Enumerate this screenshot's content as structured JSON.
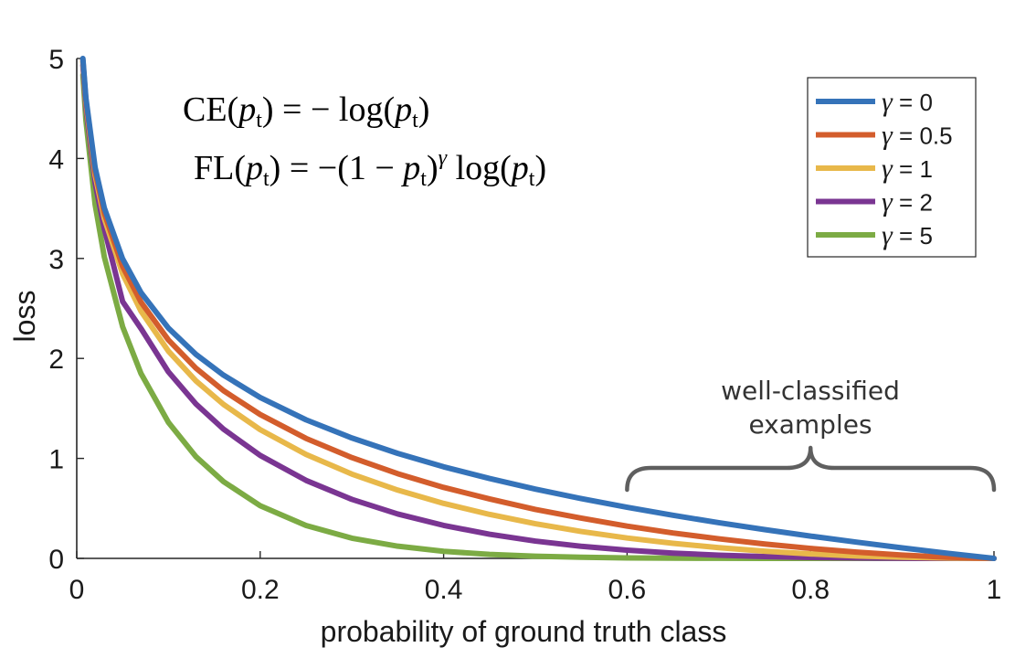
{
  "chart_data": {
    "type": "line",
    "xlabel": "probability of ground truth class",
    "ylabel": "loss",
    "xlim": [
      0,
      1
    ],
    "ylim": [
      0,
      5
    ],
    "xticks": [
      0,
      0.2,
      0.4,
      0.6,
      0.8,
      1
    ],
    "xtick_labels": [
      "0",
      "0.2",
      "0.4",
      "0.6",
      "0.8",
      "1"
    ],
    "yticks": [
      0,
      1,
      2,
      3,
      4,
      5
    ],
    "ytick_labels": [
      "0",
      "1",
      "2",
      "3",
      "4",
      "5"
    ],
    "grid": false,
    "legend_position": "top-right",
    "x": [
      0.0067,
      0.01,
      0.02,
      0.03,
      0.05,
      0.07,
      0.1,
      0.13,
      0.16,
      0.2,
      0.25,
      0.3,
      0.35,
      0.4,
      0.45,
      0.5,
      0.55,
      0.6,
      0.65,
      0.7,
      0.75,
      0.8,
      0.85,
      0.9,
      0.95,
      1.0
    ],
    "series": [
      {
        "name": "γ = 0",
        "gamma": 0,
        "color": "#3573b9",
        "values": [
          5.0,
          4.605,
          3.912,
          3.507,
          2.996,
          2.659,
          2.303,
          2.04,
          1.833,
          1.609,
          1.386,
          1.204,
          1.05,
          0.916,
          0.799,
          0.693,
          0.598,
          0.511,
          0.431,
          0.357,
          0.288,
          0.223,
          0.163,
          0.105,
          0.051,
          0.0
        ]
      },
      {
        "name": "γ = 0.5",
        "gamma": 0.5,
        "color": "#d35d2c",
        "values": [
          4.983,
          4.582,
          3.873,
          3.454,
          2.92,
          2.564,
          2.184,
          1.902,
          1.678,
          1.439,
          1.2,
          1.008,
          0.847,
          0.71,
          0.595,
          0.49,
          0.403,
          0.323,
          0.254,
          0.196,
          0.144,
          0.1,
          0.063,
          0.033,
          0.011,
          0.0
        ]
      },
      {
        "name": "γ = 1",
        "gamma": 1,
        "color": "#e8b84a",
        "values": [
          4.966,
          4.559,
          3.834,
          3.402,
          2.846,
          2.473,
          2.072,
          1.775,
          1.54,
          1.288,
          1.04,
          0.843,
          0.683,
          0.55,
          0.44,
          0.347,
          0.269,
          0.204,
          0.151,
          0.107,
          0.072,
          0.045,
          0.024,
          0.011,
          0.003,
          0.0
        ]
      },
      {
        "name": "γ = 2",
        "gamma": 2,
        "color": "#7a3592",
        "values": [
          4.933,
          4.513,
          3.757,
          3.3,
          2.569,
          2.3,
          1.865,
          1.544,
          1.293,
          1.03,
          0.78,
          0.59,
          0.444,
          0.33,
          0.242,
          0.173,
          0.121,
          0.082,
          0.053,
          0.032,
          0.018,
          0.009,
          0.004,
          0.001,
          0.0001,
          0.0
        ]
      },
      {
        "name": "γ = 5",
        "gamma": 5,
        "color": "#7cab44",
        "values": [
          4.835,
          4.38,
          3.541,
          3.018,
          2.318,
          1.85,
          1.36,
          1.017,
          0.768,
          0.527,
          0.329,
          0.202,
          0.122,
          0.071,
          0.04,
          0.022,
          0.011,
          0.005,
          0.002,
          0.001,
          0.0002,
          0.0001,
          0.0,
          0.0,
          0.0,
          0.0
        ]
      }
    ],
    "formulas": {
      "ce_lhs": "CE(",
      "ce_p": "p",
      "ce_sub": "t",
      "ce_rhs": ") = − log(",
      "ce_end": ")",
      "fl_lhs": "FL(",
      "fl_p": "p",
      "fl_sub": "t",
      "fl_mid": ") = −(1 − ",
      "fl_gamma": "γ",
      "fl_log": " log(",
      "fl_end": ")"
    },
    "annotation": {
      "line1": "well-classified",
      "line2": "examples",
      "x_start": 0.6,
      "x_end": 1.0
    }
  },
  "legend": {
    "gamma_symbol": "γ",
    "labels": [
      " = 0",
      " = 0.5",
      " = 1",
      " = 2",
      " = 5"
    ]
  }
}
